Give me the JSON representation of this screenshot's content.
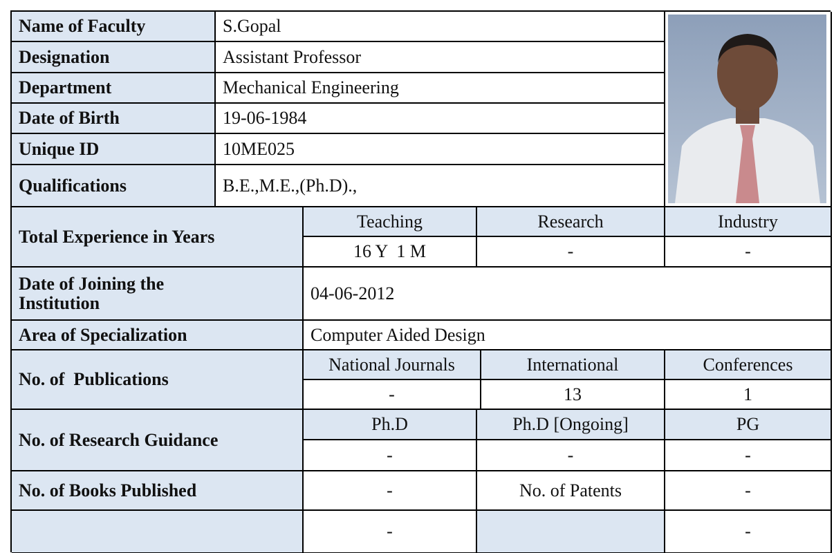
{
  "profile": [
    {
      "label": "Name of Faculty",
      "value": "S.Gopal"
    },
    {
      "label": "Designation",
      "value": "Assistant Professor"
    },
    {
      "label": "Department",
      "value": "Mechanical Engineering"
    },
    {
      "label": "Date of Birth",
      "value": "19-06-1984"
    },
    {
      "label": "Unique ID",
      "value": "10ME025"
    },
    {
      "label": "Qualifications",
      "value": "B.E.,M.E.,(Ph.D).,"
    }
  ],
  "experience": {
    "label": "Total Experience in Years",
    "headers": [
      "Teaching",
      "Research",
      "Industry"
    ],
    "values": [
      "16 Y  1 M",
      "-",
      "-"
    ]
  },
  "joining": {
    "label": "Date of Joining the Institution",
    "value": "04-06-2012"
  },
  "specialization": {
    "label": "Area of Specialization",
    "value": "Computer Aided Design"
  },
  "publications": {
    "label": "No. of  Publications",
    "headers": [
      "National Journals",
      "International",
      "Conferences"
    ],
    "values": [
      "-",
      "13",
      "1"
    ]
  },
  "guidance": {
    "label": "No. of Research Guidance",
    "headers": [
      "Ph.D",
      "Ph.D [Ongoing]",
      "PG"
    ],
    "values": [
      "-",
      "-",
      "-"
    ]
  },
  "books": {
    "label": "No. of Books Published",
    "value": "-",
    "patents_label": "No. of Patents",
    "patents_value": "-"
  },
  "last_row": {
    "values": [
      "-",
      "-"
    ]
  }
}
